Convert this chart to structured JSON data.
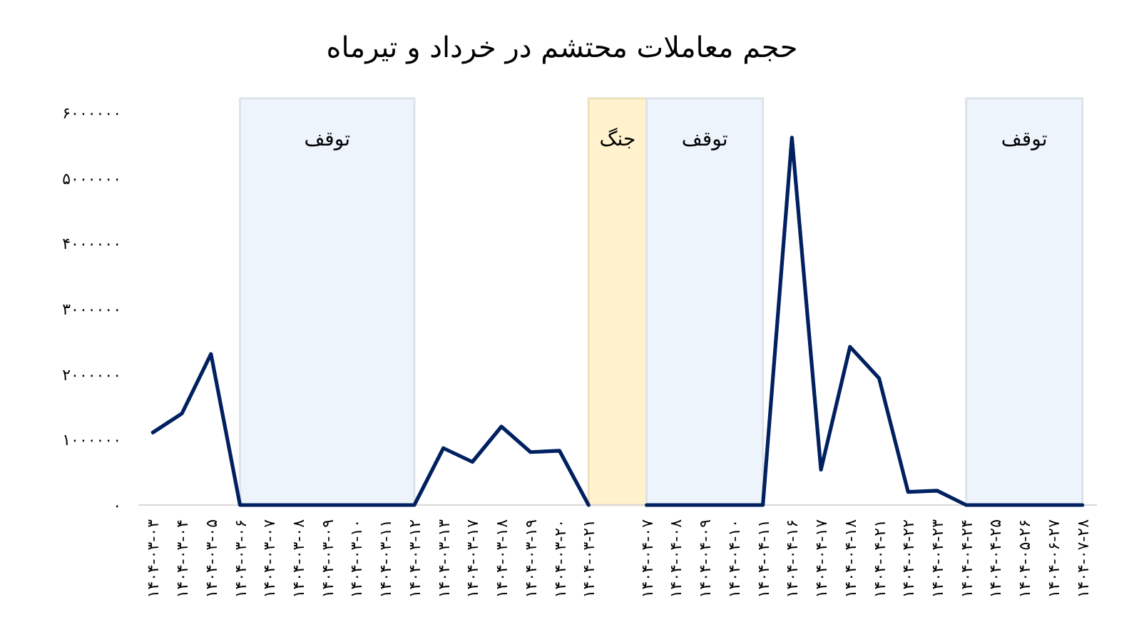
{
  "chart_data": {
    "type": "line",
    "title": "حجم معاملات محتشم در خرداد و تیرماه",
    "categories": [
      "۱۴۰۴-۰۳-۰۳",
      "۱۴۰۴-۰۳-۰۴",
      "۱۴۰۴-۰۳-۰۵",
      "۱۴۰۴-۰۳-۰۶",
      "۱۴۰۴-۰۳-۰۷",
      "۱۴۰۴-۰۳-۰۸",
      "۱۴۰۴-۰۳-۰۹",
      "۱۴۰۴-۰۳-۱۰",
      "۱۴۰۴-۰۳-۱۱",
      "۱۴۰۴-۰۳-۱۲",
      "۱۴۰۴-۰۳-۱۳",
      "۱۴۰۴-۰۳-۱۷",
      "۱۴۰۴-۰۳-۱۸",
      "۱۴۰۴-۰۳-۱۹",
      "۱۴۰۴-۰۳-۲۰",
      "۱۴۰۴-۰۳-۲۱",
      null,
      "۱۴۰۴-۰۴-۰۷",
      "۱۴۰۴-۰۴-۰۸",
      "۱۴۰۴-۰۴-۰۹",
      "۱۴۰۴-۰۴-۱۰",
      "۱۴۰۴-۰۴-۱۱",
      "۱۴۰۴-۰۴-۱۶",
      "۱۴۰۴-۰۴-۱۷",
      "۱۴۰۴-۰۴-۱۸",
      "۱۴۰۴-۰۴-۲۱",
      "۱۴۰۴-۰۴-۲۲",
      "۱۴۰۴-۰۴-۲۳",
      "۱۴۰۴-۰۴-۲۴",
      "۱۴۰۴-۰۴-۲۵",
      "۱۴۰۴-۰۵-۲۶",
      "۱۴۰۴-۰۶-۲۷",
      "۱۴۰۴-۰۷-۲۸"
    ],
    "series": [
      {
        "color": "#002060",
        "values": [
          1110000,
          1400000,
          2310000,
          0,
          0,
          0,
          0,
          0,
          0,
          0,
          870000,
          660000,
          1200000,
          810000,
          830000,
          0,
          null,
          0,
          0,
          0,
          0,
          0,
          5620000,
          540000,
          2420000,
          1940000,
          200000,
          220000,
          0,
          0,
          0,
          0,
          0
        ]
      }
    ],
    "ylim": [
      0,
      6000000
    ],
    "yticks": [
      {
        "value": 0,
        "label": "۰"
      },
      {
        "value": 1000000,
        "label": "۱۰۰۰۰۰۰"
      },
      {
        "value": 2000000,
        "label": "۲۰۰۰۰۰۰"
      },
      {
        "value": 3000000,
        "label": "۳۰۰۰۰۰۰"
      },
      {
        "value": 4000000,
        "label": "۴۰۰۰۰۰۰"
      },
      {
        "value": 5000000,
        "label": "۵۰۰۰۰۰۰"
      },
      {
        "value": 6000000,
        "label": "۶۰۰۰۰۰۰"
      }
    ],
    "bands": [
      {
        "axis": "x",
        "from": "۱۴۰۴-۰۳-۰۶",
        "to": "۱۴۰۴-۰۳-۱۲",
        "label": "توقف",
        "color": "#edf4fc"
      },
      {
        "axis": "x",
        "from": "۱۴۰۴-۰۳-۲۱",
        "to": "۱۴۰۴-۰۴-۰۷",
        "label": "جنگ",
        "color": "#fff2cc"
      },
      {
        "axis": "x",
        "from": "۱۴۰۴-۰۴-۰۷",
        "to": "۱۴۰۴-۰۴-۱۱",
        "label": "توقف",
        "color": "#edf4fc"
      },
      {
        "axis": "x",
        "from": "۱۴۰۴-۰۴-۲۴",
        "to": "۱۴۰۴-۰۷-۲۸",
        "label": "توقف",
        "color": "#edf4fc"
      }
    ],
    "marker": "none",
    "line_style": "solid"
  }
}
